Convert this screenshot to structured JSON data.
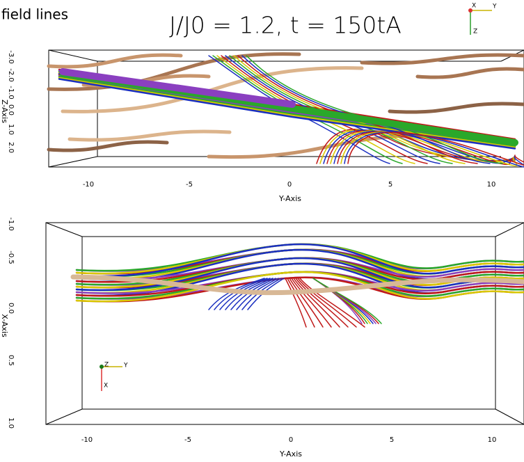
{
  "header": {
    "caption": "field lines",
    "title": "J/J0 = 1.2, t = 150tA"
  },
  "top_panel": {
    "triad": [
      "X",
      "Y",
      "Z"
    ],
    "vertical_axis": {
      "label": "Z-Axis",
      "ticks": [
        "-3.0",
        "-2.0",
        "-1.0",
        "0.0",
        "1.0",
        "2.0"
      ]
    },
    "horizontal_axis": {
      "label": "Y-Axis",
      "ticks": [
        "-10",
        "-5",
        "0",
        "5",
        "10"
      ]
    }
  },
  "bottom_panel": {
    "triad": [
      "Z",
      "Y",
      "X"
    ],
    "vertical_axis": {
      "label": "X-Axis",
      "ticks": [
        "-1.0",
        "-0.5",
        "0.0",
        "0.5",
        "1.0"
      ]
    },
    "horizontal_axis": {
      "label": "Y-Axis",
      "ticks": [
        "-10",
        "-5",
        "0",
        "5",
        "10"
      ]
    }
  }
}
